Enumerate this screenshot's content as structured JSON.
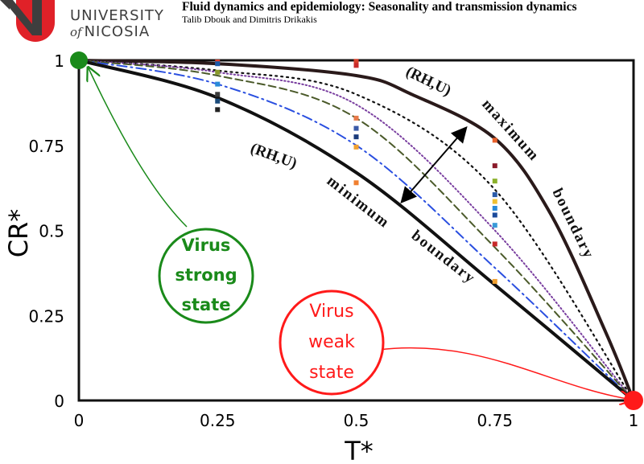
{
  "header": {
    "university_line1": "UNIVERSITY",
    "university_of": "of",
    "university_line2": "NICOSIA",
    "title": "Fluid dynamics and epidemiology: Seasonality and transmission dynamics",
    "authors": "Talib Dbouk and Dimitris Drikakis"
  },
  "colors": {
    "brand_red": "#e02128",
    "brand_grey": "#3e3e3e",
    "strong_green": "#1a8a1a",
    "weak_red": "#ff1a1a"
  },
  "chart_data": {
    "type": "line",
    "xlabel": "T*",
    "ylabel": "CR*",
    "xlim": [
      0,
      1
    ],
    "ylim": [
      0,
      1
    ],
    "x_ticks": [
      "0",
      "0.25",
      "0.5",
      "0.75",
      "1"
    ],
    "y_ticks": [
      "0",
      "0.25",
      "0.5",
      "0.75",
      "1"
    ],
    "x_tick_values": [
      0,
      0.25,
      0.5,
      0.75,
      1
    ],
    "y_tick_values": [
      0,
      0.25,
      0.5,
      0.75,
      1
    ],
    "series": [
      {
        "name": "maximum boundary",
        "style": "solid-thick",
        "color": "#2a1a1a",
        "x": [
          0,
          0.25,
          0.5,
          0.6,
          0.75,
          0.85,
          0.95,
          1
        ],
        "y": [
          1,
          0.99,
          0.955,
          0.9,
          0.77,
          0.55,
          0.2,
          0
        ]
      },
      {
        "name": "dotted black",
        "style": "dotted",
        "color": "#111111",
        "x": [
          0,
          0.25,
          0.5,
          0.75,
          1
        ],
        "y": [
          1,
          0.97,
          0.9,
          0.62,
          0
        ]
      },
      {
        "name": "dotted purple",
        "style": "dotted-fine",
        "color": "#7a3fa0",
        "x": [
          0,
          0.25,
          0.5,
          0.75,
          1
        ],
        "y": [
          1,
          0.965,
          0.87,
          0.5,
          0
        ]
      },
      {
        "name": "dashed olive",
        "style": "dashed",
        "color": "#4b5a2a",
        "x": [
          0,
          0.25,
          0.5,
          0.75,
          1
        ],
        "y": [
          1,
          0.955,
          0.83,
          0.45,
          0
        ]
      },
      {
        "name": "dashdot blue",
        "style": "dashdot",
        "color": "#2a4fe0",
        "x": [
          0,
          0.25,
          0.5,
          0.75,
          1
        ],
        "y": [
          1,
          0.93,
          0.75,
          0.39,
          0
        ]
      },
      {
        "name": "minimum boundary",
        "style": "solid-thick",
        "color": "#111111",
        "x": [
          0,
          0.25,
          0.5,
          0.75,
          1
        ],
        "y": [
          1,
          0.89,
          0.67,
          0.34,
          0
        ]
      }
    ],
    "markers": [
      {
        "x": 0.25,
        "y": 0.995,
        "color": "#e8402a"
      },
      {
        "x": 0.25,
        "y": 0.99,
        "color": "#1a5aa8"
      },
      {
        "x": 0.25,
        "y": 0.965,
        "color": "#8a9a2a"
      },
      {
        "x": 0.25,
        "y": 0.93,
        "color": "#2a8ad8"
      },
      {
        "x": 0.25,
        "y": 0.9,
        "color": "#3a3a3a"
      },
      {
        "x": 0.25,
        "y": 0.88,
        "color": "#1a4a7a"
      },
      {
        "x": 0.25,
        "y": 0.855,
        "color": "#222222"
      },
      {
        "x": 0.5,
        "y": 0.997,
        "color": "#d8402a"
      },
      {
        "x": 0.5,
        "y": 0.985,
        "color": "#c82a2a"
      },
      {
        "x": 0.5,
        "y": 0.83,
        "color": "#e87a4a"
      },
      {
        "x": 0.5,
        "y": 0.8,
        "color": "#3a5aa8"
      },
      {
        "x": 0.5,
        "y": 0.775,
        "color": "#1a3a7a"
      },
      {
        "x": 0.5,
        "y": 0.745,
        "color": "#f0a030"
      },
      {
        "x": 0.5,
        "y": 0.64,
        "color": "#f08030"
      },
      {
        "x": 0.75,
        "y": 0.765,
        "color": "#e8602a"
      },
      {
        "x": 0.75,
        "y": 0.69,
        "color": "#8a1a2a"
      },
      {
        "x": 0.75,
        "y": 0.645,
        "color": "#8ab02a"
      },
      {
        "x": 0.75,
        "y": 0.605,
        "color": "#2a5aa8"
      },
      {
        "x": 0.75,
        "y": 0.585,
        "color": "#f0c030"
      },
      {
        "x": 0.75,
        "y": 0.565,
        "color": "#2a8ad8"
      },
      {
        "x": 0.75,
        "y": 0.545,
        "color": "#1a4a9a"
      },
      {
        "x": 0.75,
        "y": 0.515,
        "color": "#3a9ad8"
      },
      {
        "x": 0.75,
        "y": 0.46,
        "color": "#c82a2a"
      },
      {
        "x": 0.75,
        "y": 0.35,
        "color": "#f0a030"
      }
    ],
    "annotations": {
      "max_label_rh": "(RH,U)",
      "max_label_word1": "maximum",
      "max_label_word2": "boundary",
      "min_label_rh": "(RH,U)",
      "min_label_word1": "minimum",
      "min_label_word2": "boundary",
      "strong_line1": "Virus",
      "strong_line2": "strong",
      "strong_line3": "state",
      "weak_line1": "Virus",
      "weak_line2": "weak",
      "weak_line3": "state"
    },
    "points": [
      {
        "name": "strong state",
        "x": 0,
        "y": 1,
        "color": "#1a8a1a"
      },
      {
        "name": "weak state",
        "x": 1,
        "y": 0,
        "color": "#ff1a1a"
      }
    ]
  }
}
